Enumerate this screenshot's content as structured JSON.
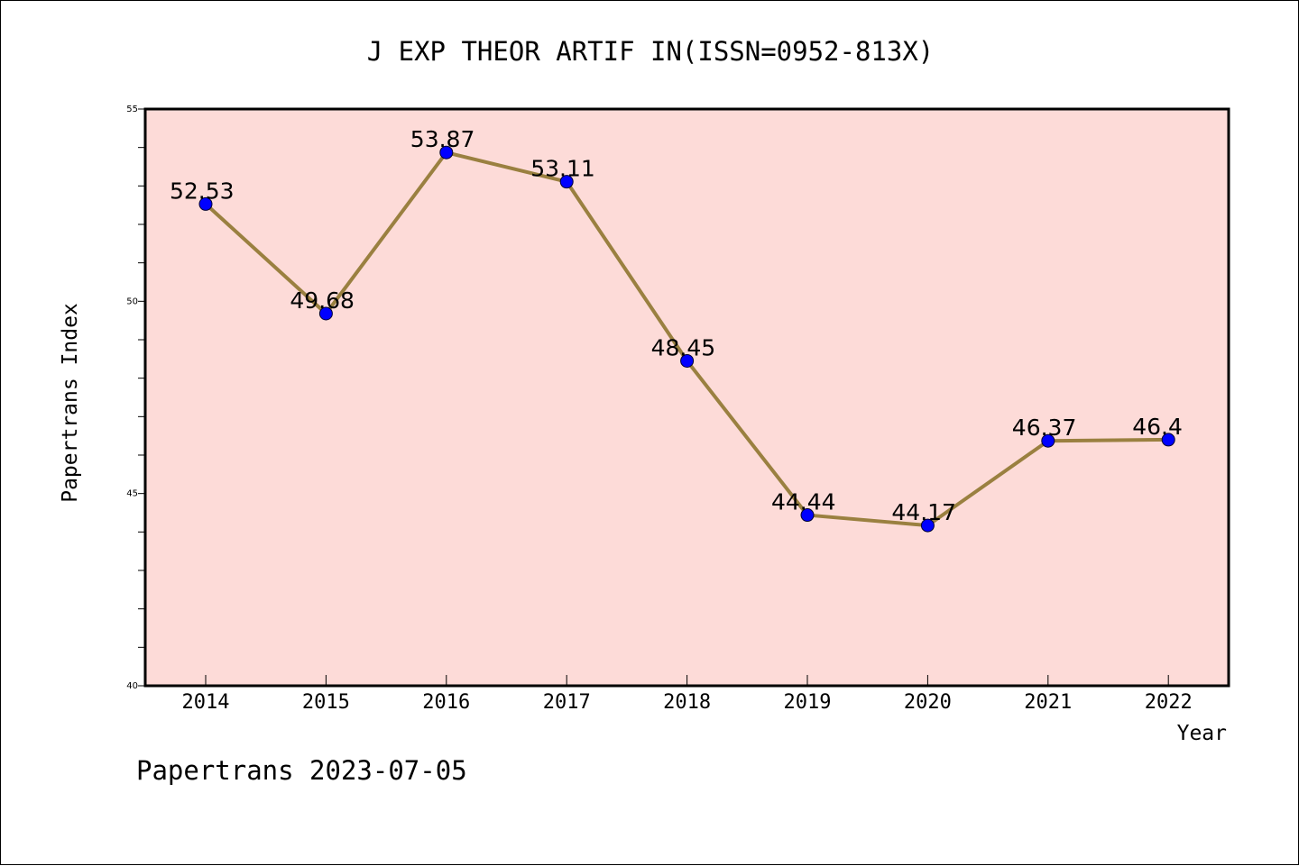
{
  "colors": {
    "plot_background": "#fddbd8",
    "line": "#9a8040",
    "marker": "#0000ff",
    "axis": "#000000",
    "page_background": "#ffffff"
  },
  "chart_data": {
    "type": "line",
    "title": "J EXP THEOR ARTIF IN(ISSN=0952-813X)",
    "xlabel": "Year",
    "ylabel": "Papertrans Index",
    "categories": [
      "2014",
      "2015",
      "2016",
      "2017",
      "2018",
      "2019",
      "2020",
      "2021",
      "2022"
    ],
    "series": [
      {
        "values": [
          52.53,
          49.68,
          53.87,
          53.11,
          48.45,
          44.44,
          44.17,
          46.37,
          46.4
        ],
        "labels": [
          "52.53",
          "49.68",
          "53.87",
          "53.11",
          "48.45",
          "44.44",
          "44.17",
          "46.37",
          "46.4"
        ]
      }
    ],
    "ylim": [
      40,
      55
    ],
    "yticks": [
      40,
      45,
      50,
      55
    ],
    "yminor_step": 1,
    "grid": false,
    "legend": "none"
  },
  "footer": "Papertrans 2023-07-05"
}
